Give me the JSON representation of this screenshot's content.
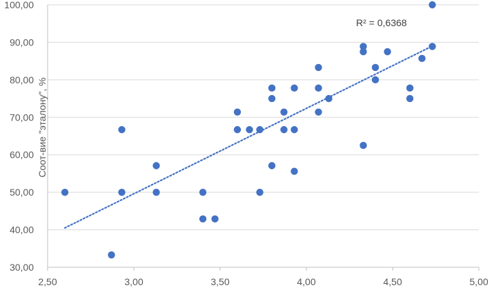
{
  "chart_data": {
    "type": "scatter",
    "title": "",
    "xlabel": "",
    "ylabel": "Соот-вие \"эталону\", %",
    "xlim": [
      2.5,
      5.0
    ],
    "ylim": [
      30,
      100
    ],
    "x_ticks": [
      "2,50",
      "3,00",
      "3,50",
      "4,00",
      "4,50",
      "5,00"
    ],
    "y_ticks": [
      "30,00",
      "40,00",
      "50,00",
      "60,00",
      "70,00",
      "80,00",
      "90,00",
      "100,00"
    ],
    "grid": "horizontal",
    "legend": "none",
    "point_color": "#4472C4",
    "trendline": {
      "type": "linear",
      "label": "R² = 0,6368",
      "x_range": [
        2.6,
        4.73
      ],
      "y_range": [
        40.5,
        89.0
      ],
      "style": "dotted",
      "color": "#4472C4"
    },
    "series": [
      {
        "points": [
          [
            2.6,
            50.0
          ],
          [
            2.87,
            33.3
          ],
          [
            2.93,
            66.7
          ],
          [
            2.93,
            50.0
          ],
          [
            3.13,
            57.1
          ],
          [
            3.13,
            50.0
          ],
          [
            3.4,
            50.0
          ],
          [
            3.4,
            42.9
          ],
          [
            3.47,
            42.9
          ],
          [
            3.6,
            71.4
          ],
          [
            3.6,
            66.7
          ],
          [
            3.67,
            66.7
          ],
          [
            3.73,
            66.7
          ],
          [
            3.73,
            50.0
          ],
          [
            3.8,
            77.8
          ],
          [
            3.8,
            75.0
          ],
          [
            3.8,
            57.1
          ],
          [
            3.87,
            71.4
          ],
          [
            3.87,
            66.7
          ],
          [
            3.93,
            77.8
          ],
          [
            3.93,
            66.7
          ],
          [
            3.93,
            55.6
          ],
          [
            4.07,
            83.3
          ],
          [
            4.07,
            77.8
          ],
          [
            4.07,
            71.4
          ],
          [
            4.13,
            75.0
          ],
          [
            4.33,
            88.9
          ],
          [
            4.33,
            87.5
          ],
          [
            4.33,
            62.5
          ],
          [
            4.4,
            83.3
          ],
          [
            4.4,
            80.0
          ],
          [
            4.47,
            87.5
          ],
          [
            4.6,
            77.8
          ],
          [
            4.6,
            75.0
          ],
          [
            4.67,
            85.7
          ],
          [
            4.73,
            100.0
          ],
          [
            4.73,
            88.9
          ]
        ]
      }
    ]
  }
}
